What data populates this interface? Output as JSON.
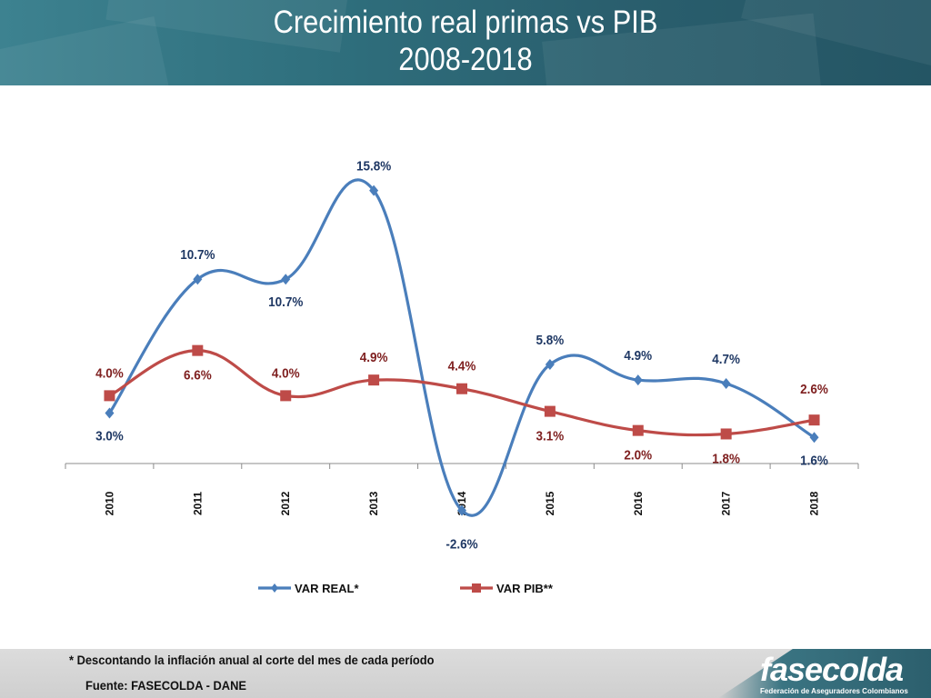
{
  "header": {
    "title_line1": "Crecimiento real primas vs PIB",
    "title_line2": "2008-2018"
  },
  "chart_data": {
    "type": "line",
    "categories": [
      "2010",
      "2011",
      "2012",
      "2013",
      "2014",
      "2015",
      "2016",
      "2017",
      "2018"
    ],
    "series": [
      {
        "name": "VAR REAL*",
        "color": "#4a7ebb",
        "marker": "diamond",
        "values": [
          3.0,
          10.7,
          10.7,
          15.8,
          -2.6,
          5.8,
          4.9,
          4.7,
          1.6
        ],
        "labels": [
          "3.0%",
          "10.7%",
          "10.7%",
          "15.8%",
          "-2.6%",
          "5.8%",
          "4.9%",
          "4.7%",
          "1.6%"
        ]
      },
      {
        "name": "VAR PIB**",
        "color": "#be4b48",
        "marker": "square",
        "values": [
          4.0,
          6.6,
          4.0,
          4.9,
          4.4,
          3.1,
          2.0,
          1.8,
          2.6
        ],
        "labels": [
          "4.0%",
          "6.6%",
          "4.0%",
          "4.9%",
          "4.4%",
          "3.1%",
          "2.0%",
          "1.8%",
          "2.6%"
        ]
      }
    ],
    "smooth": true,
    "grid": false,
    "legend_position": "bottom",
    "title": "Crecimiento real primas vs PIB 2008-2018"
  },
  "footer": {
    "note": "* Descontando la inflación anual al corte del mes de cada período",
    "source": "Fuente: FASECOLDA - DANE"
  },
  "logo": {
    "name": "fasecolda",
    "subtitle": "Federación de Aseguradores Colombianos"
  }
}
